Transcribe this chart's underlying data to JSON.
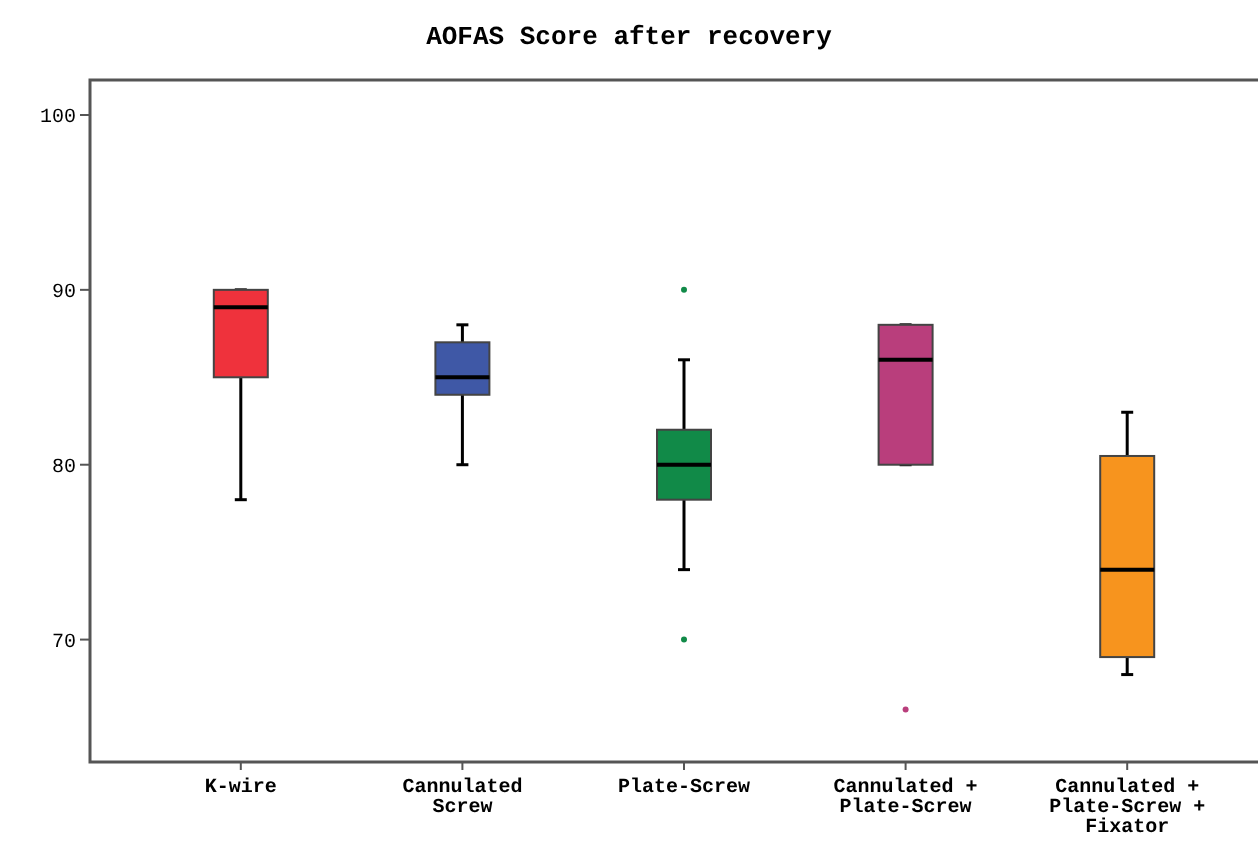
{
  "chart_data": {
    "type": "box",
    "title": "AOFAS Score after recovery",
    "categories": [
      "K-wire",
      "Cannulated Screw",
      "Plate-Screw",
      "Cannulated + Plate-Screw",
      "Cannulated + Plate-Screw + Fixator"
    ],
    "colors": [
      "#ef323c",
      "#3f58a6",
      "#118a48",
      "#b93e7c",
      "#f7941e"
    ],
    "boxes": [
      {
        "low": 78,
        "q1": 85,
        "median": 89,
        "q3": 90,
        "high": 90
      },
      {
        "low": 80,
        "q1": 84,
        "median": 85,
        "q3": 87,
        "high": 88
      },
      {
        "low": 74,
        "q1": 78,
        "median": 80,
        "q3": 82,
        "high": 86,
        "outliers": [
          90,
          70
        ]
      },
      {
        "low": 80,
        "q1": 80,
        "median": 86,
        "q3": 88,
        "high": 88,
        "outliers": [
          66
        ]
      },
      {
        "low": 68,
        "q1": 69,
        "median": 74,
        "q3": 80.5,
        "high": 83
      }
    ],
    "ylim": [
      63,
      102
    ],
    "yticks": [
      70,
      80,
      90,
      100
    ],
    "grid": false
  }
}
